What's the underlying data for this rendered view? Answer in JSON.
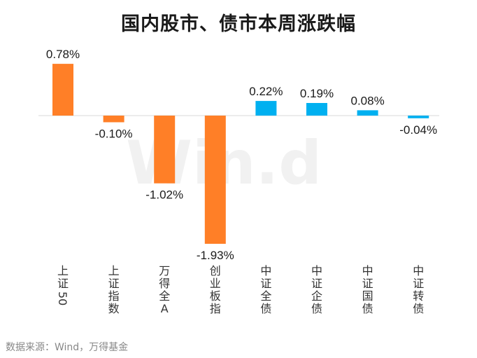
{
  "chart_data": {
    "type": "bar",
    "title": "国内股市、债市本周涨跌幅",
    "categories": [
      "上证50",
      "上证指数",
      "万得全A",
      "创业板指",
      "中证全债",
      "中证企债",
      "中证国债",
      "中证转债"
    ],
    "values": [
      0.78,
      -0.1,
      -1.02,
      -1.93,
      0.22,
      0.19,
      0.08,
      -0.04
    ],
    "value_labels": [
      "0.78%",
      "-0.10%",
      "-1.02%",
      "-1.93%",
      "0.22%",
      "0.19%",
      "0.08%",
      "-0.04%"
    ],
    "groups": [
      "stock",
      "stock",
      "stock",
      "stock",
      "bond",
      "bond",
      "bond",
      "bond"
    ],
    "group_colors": {
      "stock": "#FF7F27",
      "bond": "#00B0F0"
    },
    "unit": "%",
    "xlabel": "",
    "ylabel": "",
    "grid": false
  },
  "watermark": "Win.d",
  "source_note": "数据来源：Wind，万得基金"
}
